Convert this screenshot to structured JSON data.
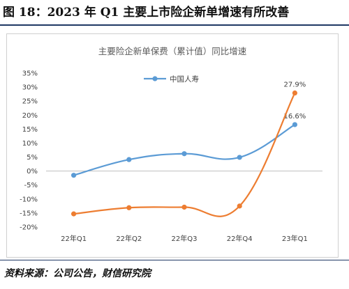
{
  "figure": {
    "title": "图 18：2023 年 Q1 主要上市险企新单增速有所改善",
    "source": "资料来源：公司公告，财信研究院"
  },
  "colors": {
    "series_blue": "#5b9bd5",
    "series_orange": "#ed7d31",
    "axis": "#bfbfbf",
    "text": "#595959"
  },
  "chart_data": {
    "type": "line",
    "title": "主要险企新单保费（累计值）同比增速",
    "xlabel": "",
    "ylabel": "",
    "categories": [
      "22年Q1",
      "22年Q2",
      "22年Q3",
      "22年Q4",
      "23年Q1"
    ],
    "ylim": [
      -20,
      35
    ],
    "yticks": [
      -20,
      -15,
      -10,
      -5,
      0,
      5,
      10,
      15,
      20,
      25,
      30,
      35
    ],
    "ytick_labels": [
      "-20%",
      "-15%",
      "-10%",
      "-5%",
      "0%",
      "5%",
      "10%",
      "15%",
      "20%",
      "25%",
      "30%",
      "35%"
    ],
    "grid": false,
    "legend_position": "top-left",
    "series": [
      {
        "name": "中国人寿",
        "color": "#5b9bd5",
        "values": [
          -1.5,
          4.1,
          6.2,
          4.9,
          16.6
        ],
        "labels": [
          "",
          "",
          "",
          "",
          "16.6%"
        ]
      },
      {
        "name": "",
        "color": "#ed7d31",
        "values": [
          -15.3,
          -13.1,
          -12.9,
          -12.5,
          27.9
        ],
        "labels": [
          "",
          "",
          "",
          "",
          "27.9%"
        ]
      }
    ]
  }
}
